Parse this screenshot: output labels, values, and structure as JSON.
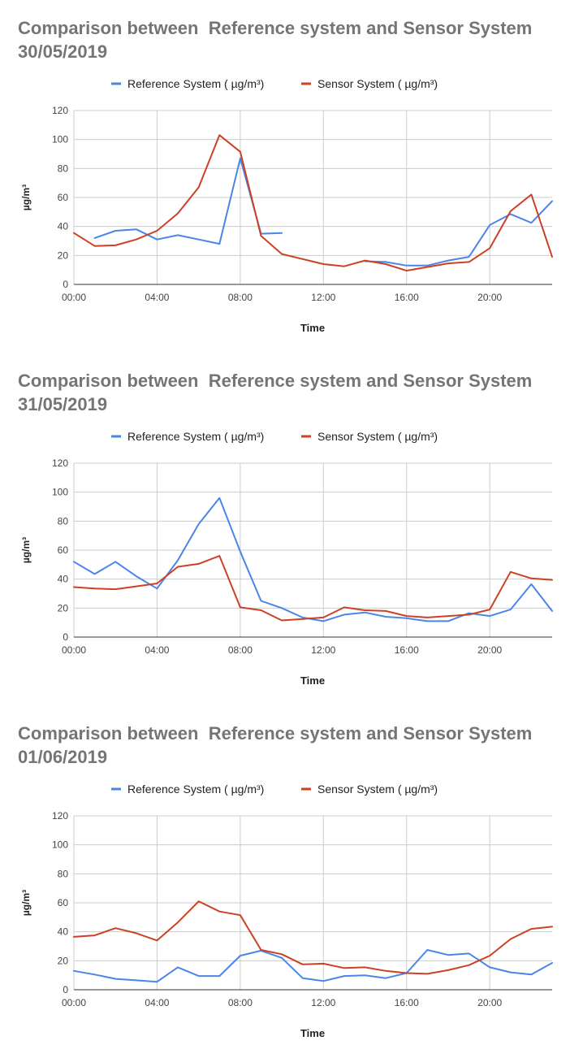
{
  "colors": {
    "reference": "#4a86e8",
    "sensor": "#cc4125",
    "grid": "#cccccc",
    "axis": "#333333",
    "tick_text": "#444444",
    "title": "#757575"
  },
  "chart_data": [
    {
      "type": "line",
      "title_line1": "Comparison between  Reference system and Sensor System",
      "title_line2": "30/05/2019",
      "xlabel": "Time",
      "ylabel": "µg/m³",
      "ylim": [
        0,
        120
      ],
      "y_ticks": [
        0,
        20,
        40,
        60,
        80,
        100,
        120
      ],
      "x_tick_labels": [
        "00:00",
        "04:00",
        "08:00",
        "12:00",
        "16:00",
        "20:00"
      ],
      "x_tick_hours": [
        0,
        4,
        8,
        12,
        16,
        20
      ],
      "x_hours": [
        0,
        1,
        2,
        3,
        4,
        5,
        6,
        7,
        8,
        9,
        10,
        11,
        12,
        13,
        14,
        15,
        16,
        17,
        18,
        19,
        20,
        21,
        22,
        23
      ],
      "grid": true,
      "legend_position": "top",
      "series": [
        {
          "name": "Reference System ( µg/m³)",
          "color_key": "reference",
          "values": [
            null,
            32,
            37,
            38,
            31,
            34,
            31,
            28,
            87,
            35,
            35.5,
            null,
            null,
            null,
            16,
            15.5,
            13,
            13,
            16.5,
            19,
            41,
            48.5,
            42.5,
            57.5
          ]
        },
        {
          "name": "Sensor System ( µg/m³)",
          "color_key": "sensor",
          "values": [
            35.5,
            26.5,
            27,
            31,
            37,
            49,
            67,
            103,
            91.5,
            33.5,
            21,
            17.5,
            14,
            12.5,
            16.5,
            14,
            9.5,
            12,
            14.5,
            15.5,
            25,
            50.5,
            62,
            19
          ]
        }
      ]
    },
    {
      "type": "line",
      "title_line1": "Comparison between  Reference system and Sensor System",
      "title_line2": "31/05/2019",
      "xlabel": "Time",
      "ylabel": "µg/m³",
      "ylim": [
        0,
        120
      ],
      "y_ticks": [
        0,
        20,
        40,
        60,
        80,
        100,
        120
      ],
      "x_tick_labels": [
        "00:00",
        "04:00",
        "08:00",
        "12:00",
        "16:00",
        "20:00"
      ],
      "x_tick_hours": [
        0,
        4,
        8,
        12,
        16,
        20
      ],
      "x_hours": [
        0,
        1,
        2,
        3,
        4,
        5,
        6,
        7,
        8,
        9,
        10,
        11,
        12,
        13,
        14,
        15,
        16,
        17,
        18,
        19,
        20,
        21,
        22,
        23
      ],
      "grid": true,
      "legend_position": "top",
      "series": [
        {
          "name": "Reference System ( µg/m³)",
          "color_key": "reference",
          "values": [
            52,
            43.5,
            52,
            42,
            33.5,
            53,
            78,
            96,
            59,
            25,
            20,
            13.5,
            11,
            15.5,
            17,
            14,
            13,
            11,
            11,
            16.5,
            14.5,
            19,
            36.5,
            18
          ]
        },
        {
          "name": "Sensor System ( µg/m³)",
          "color_key": "sensor",
          "values": [
            34.5,
            33.5,
            33,
            35,
            37,
            48.5,
            50.5,
            56,
            20.5,
            18.5,
            11.5,
            12.5,
            13.5,
            20.5,
            18.5,
            18,
            14.5,
            13.5,
            14.5,
            15.5,
            19,
            45,
            40.5,
            39.5
          ]
        }
      ]
    },
    {
      "type": "line",
      "title_line1": "Comparison between  Reference system and Sensor System",
      "title_line2": "01/06/2019",
      "xlabel": "Time",
      "ylabel": "µg/m³",
      "ylim": [
        0,
        120
      ],
      "y_ticks": [
        0,
        20,
        40,
        60,
        80,
        100,
        120
      ],
      "x_tick_labels": [
        "00:00",
        "04:00",
        "08:00",
        "12:00",
        "16:00",
        "20:00"
      ],
      "x_tick_hours": [
        0,
        4,
        8,
        12,
        16,
        20
      ],
      "x_hours": [
        0,
        1,
        2,
        3,
        4,
        5,
        6,
        7,
        8,
        9,
        10,
        11,
        12,
        13,
        14,
        15,
        16,
        17,
        18,
        19,
        20,
        21,
        22,
        23
      ],
      "grid": true,
      "legend_position": "top",
      "series": [
        {
          "name": "Reference System ( µg/m³)",
          "color_key": "reference",
          "values": [
            13,
            10.5,
            7.5,
            6.5,
            5.5,
            15.5,
            9.5,
            9.5,
            23.5,
            27,
            22,
            8,
            6,
            9.5,
            10,
            8,
            11.5,
            27.5,
            24,
            25,
            15.5,
            12,
            10.5,
            18.5
          ]
        },
        {
          "name": "Sensor System ( µg/m³)",
          "color_key": "sensor",
          "values": [
            36.5,
            37.5,
            42.5,
            39,
            34,
            46.5,
            61,
            54,
            51.5,
            27.5,
            24.5,
            17.5,
            18,
            15,
            15.5,
            13,
            11.5,
            11,
            13.5,
            17,
            23.5,
            35,
            42,
            43.5
          ]
        }
      ]
    }
  ]
}
